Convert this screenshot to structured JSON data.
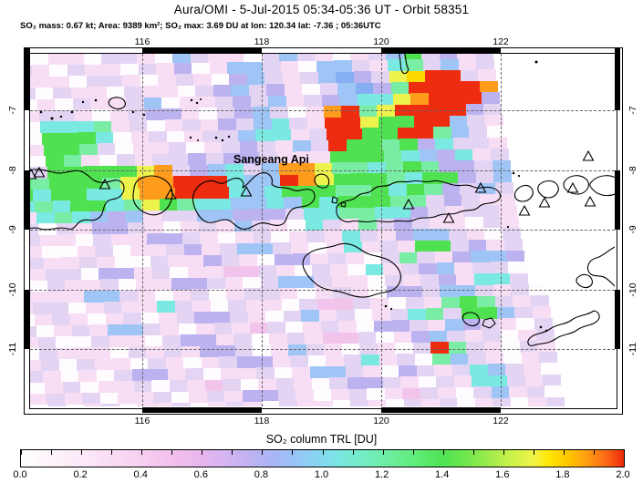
{
  "title": "Aura/OMI - 5-Jul-2015 05:34-05:36 UT - Orbit 58351",
  "subtitle": "SO₂ mass: 0.67 kt; Area: 9389 km²; SO₂ max: 3.69 DU at lon: 120.34 lat: -7.36 ; 05:36UTC",
  "map": {
    "volcano_label": "Sangeang Api",
    "lon_ticks": [
      116,
      118,
      120,
      122
    ],
    "lat_ticks": [
      -7,
      -8,
      -9,
      -10,
      -11
    ],
    "volcano_markers": [
      [
        1,
        133
      ],
      [
        10,
        131
      ],
      [
        82,
        144
      ],
      [
        154,
        155
      ],
      [
        237,
        152
      ],
      [
        415,
        166
      ],
      [
        459,
        181
      ],
      [
        494,
        148
      ],
      [
        542,
        173
      ],
      [
        564,
        164
      ],
      [
        595,
        148
      ],
      [
        614,
        163
      ],
      [
        612,
        113
      ]
    ]
  },
  "colorbar": {
    "label": "SO₂ column TRL [DU]",
    "min": 0.0,
    "max": 2.0,
    "major_tick_labels": [
      "0.0",
      "0.2",
      "0.4",
      "0.6",
      "0.8",
      "1.0",
      "1.2",
      "1.4",
      "1.6",
      "1.8",
      "2.0"
    ],
    "minor_tick_step": 0.1
  },
  "palette": {
    "w": "#fefcfe",
    "a": "#fbf0f8",
    "p": "#f8def4",
    "P": "#f2c4ec",
    "l": "#e4d4f4",
    "v": "#bcb2ef",
    "b": "#9ec5f6",
    "B": "#86aef2",
    "c": "#7ae9e2",
    "g": "#79eda4",
    "G": "#4fe14f",
    "y": "#eef24c",
    "Y": "#ffd800",
    "o": "#ff9c1c",
    "r": "#ee2c10"
  },
  "mosaic": {
    "rows": [
      "plwwpplwwlppwwlppwlpwpplwplww.........",
      "wplpwwlplpwplpwlpwplpwlplpwpl.........",
      "pwlpplwwpplwlpwplwpplwplpwwpl.........",
      "plwwppwllpwblppwlblpwplbGlvpl.........",
      "wplpwlppwlpvwpbblpwbblpcglbpl.........",
      "lwpppwllpwplpwvblplbBvlyYrrlp.........",
      "pwlwlppwlppwlvblvpwlbBvgrrrro.........",
      "lpwpwlpplbwpplvlbplvbccyorrrv.........",
      "wlpllpwplvvpwlvblwporgyrrrrvl.........",
      "plwcccgplwplpvlbclprryGGrrblp.........",
      "lpwGGGcwplwpllbccplrrGGrrgblw.........",
      "wlpGGglwpplwplvlpblrGGgGvcllp.........",
      "plwGgpwlpllvlvvlpppGGGgcbvcpl.........",
      "wplGGGGGyolvbclbooyggcgGgvvlb.........",
      "lGgGGGgyoorrrcbbroyGGGgcGGvlb.........",
      "pGcGGccyoorrrcbcGGGggGcGgvlbl.........",
      "wcgcGGcgyGgccbbcbGcGGGgglvlpp.........",
      "lpcgcbvbpllbbvvvlccggccvlpllp.........",
      "plwlpvvlpwplpblpwclpglvlppwlp.........",
      "wlppwlppvvlpwplwplpclpvbblpwl.........",
      "lpwwplwpplvplbblpwpcplpGGlvpl.........",
      "plpplpwwlppvlpwvvplpwlglpvbbv.........",
      "wpllwvvplwppPPlpwlpwcplvbpllw.........",
      "pwlpplwppvvlpwlbblppwlplvpccl.........",
      "lpppbblpwplwpllpwplpwvvlbblplw........",
      "pllwplppclpwlppwlPPlpwlpgGglpl........",
      "wplpwplwplvvlpwlbplwplcglGGblp........",
      "lwplpbblpwplpPlwplpwvvlpbvlpwl........",
      "plwwlppwlvvplwplpPPlwpvblplwpl........",
      "wlpppwlplpvvlwpblpwlpwlrglpwlp........",
      "plwlppwlpwplvvplwplcplwgblpwpl........",
      "lpwpwlvvplwpplwpbblpwvlplcblpw........",
      "wplwpplwlpPlwplpwlvvlpwlpcclpl........",
      "plplwpplwplpvvlpwplwpPlpwlbplw........",
      "wlwplwpplwplpwlppwlpwlplwplwpl........"
    ]
  }
}
